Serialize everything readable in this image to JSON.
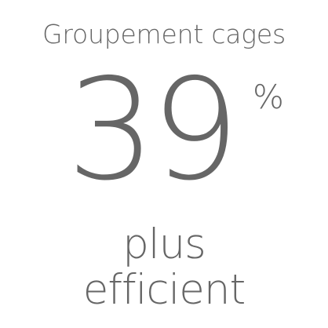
{
  "stat": {
    "heading": "Groupement cages",
    "value": "39",
    "unit": "%",
    "caption": {
      "line1": "plus",
      "line2": "efficient"
    },
    "text_color": "#666666",
    "background_color": "#ffffff"
  }
}
